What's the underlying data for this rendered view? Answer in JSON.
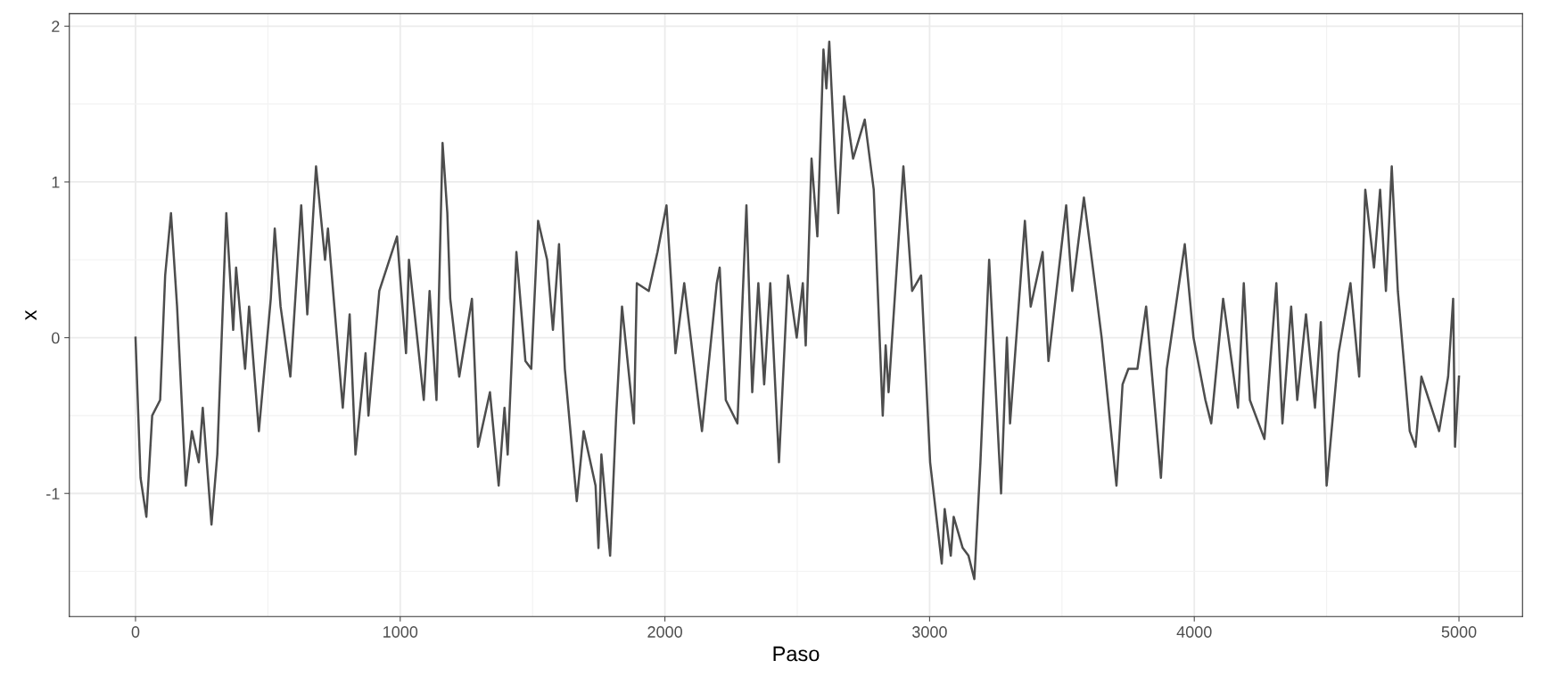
{
  "chart_data": {
    "type": "line",
    "xlabel": "Paso",
    "ylabel": "x",
    "xlim": [
      -250,
      5240
    ],
    "ylim": [
      -1.79,
      2.08
    ],
    "xticks": [
      0,
      1000,
      2000,
      3000,
      4000,
      5000
    ],
    "yticks": [
      -1,
      0,
      1,
      2
    ],
    "grid": true,
    "marker": "none",
    "line_style": "solid",
    "series": [
      {
        "color": "#4d4d4d",
        "x": [
          0,
          19,
          41,
          63,
          93,
          112,
          134,
          157,
          190,
          213,
          239,
          254,
          287,
          309,
          332,
          343,
          369,
          380,
          414,
          429,
          466,
          511,
          526,
          548,
          585,
          626,
          649,
          682,
          716,
          727,
          761,
          783,
          809,
          831,
          869,
          880,
          921,
          988,
          1022,
          1033,
          1089,
          1111,
          1137,
          1160,
          1178,
          1189,
          1223,
          1271,
          1294,
          1339,
          1372,
          1394,
          1406,
          1439,
          1473,
          1495,
          1521,
          1555,
          1577,
          1600,
          1622,
          1667,
          1693,
          1738,
          1749,
          1760,
          1793,
          1816,
          1838,
          1883,
          1894,
          1939,
          1972,
          2006,
          2040,
          2073,
          2129,
          2140,
          2196,
          2207,
          2230,
          2274,
          2308,
          2330,
          2353,
          2375,
          2398,
          2431,
          2465,
          2498,
          2521,
          2532,
          2554,
          2576,
          2599,
          2610,
          2621,
          2644,
          2655,
          2677,
          2711,
          2755,
          2789,
          2823,
          2834,
          2845,
          2901,
          2934,
          2968,
          3002,
          3046,
          3057,
          3080,
          3091,
          3125,
          3147,
          3169,
          3192,
          3225,
          3270,
          3292,
          3304,
          3360,
          3382,
          3427,
          3449,
          3516,
          3539,
          3583,
          3628,
          3650,
          3706,
          3729,
          3751,
          3785,
          3818,
          3874,
          3896,
          3964,
          3997,
          4042,
          4064,
          4109,
          4165,
          4187,
          4210,
          4265,
          4310,
          4333,
          4366,
          4389,
          4422,
          4456,
          4478,
          4500,
          4545,
          4590,
          4623,
          4646,
          4679,
          4702,
          4724,
          4746,
          4769,
          4814,
          4836,
          4858,
          4925,
          4959,
          4978,
          4985,
          5000
        ],
        "values": [
          0,
          -0.9,
          -1.15,
          -0.5,
          -0.4,
          0.4,
          0.8,
          0.2,
          -0.95,
          -0.6,
          -0.8,
          -0.45,
          -1.2,
          -0.75,
          0.3,
          0.8,
          0.05,
          0.45,
          -0.2,
          0.2,
          -0.6,
          0.25,
          0.7,
          0.2,
          -0.25,
          0.85,
          0.15,
          1.1,
          0.5,
          0.7,
          0.0,
          -0.45,
          0.15,
          -0.75,
          -0.1,
          -0.5,
          0.3,
          0.65,
          -0.1,
          0.5,
          -0.4,
          0.3,
          -0.4,
          1.25,
          0.8,
          0.25,
          -0.25,
          0.25,
          -0.7,
          -0.35,
          -0.95,
          -0.45,
          -0.75,
          0.55,
          -0.15,
          -0.2,
          0.75,
          0.5,
          0.05,
          0.6,
          -0.2,
          -1.05,
          -0.6,
          -0.95,
          -1.35,
          -0.75,
          -1.4,
          -0.5,
          0.2,
          -0.55,
          0.35,
          0.3,
          0.55,
          0.85,
          -0.1,
          0.35,
          -0.45,
          -0.6,
          0.35,
          0.45,
          -0.4,
          -0.55,
          0.85,
          -0.35,
          0.35,
          -0.3,
          0.35,
          -0.8,
          0.4,
          0.0,
          0.35,
          -0.05,
          1.15,
          0.65,
          1.85,
          1.6,
          1.9,
          1.1,
          0.8,
          1.55,
          1.15,
          1.4,
          0.95,
          -0.5,
          -0.05,
          -0.35,
          1.1,
          0.3,
          0.4,
          -0.8,
          -1.45,
          -1.1,
          -1.4,
          -1.15,
          -1.35,
          -1.4,
          -1.55,
          -0.8,
          0.5,
          -1.0,
          0.0,
          -0.55,
          0.75,
          0.2,
          0.55,
          -0.15,
          0.85,
          0.3,
          0.9,
          0.3,
          0.0,
          -0.95,
          -0.3,
          -0.2,
          -0.2,
          0.2,
          -0.9,
          -0.2,
          0.6,
          0.0,
          -0.4,
          -0.55,
          0.25,
          -0.45,
          0.35,
          -0.4,
          -0.65,
          0.35,
          -0.55,
          0.2,
          -0.4,
          0.15,
          -0.45,
          0.1,
          -0.95,
          -0.1,
          0.35,
          -0.25,
          0.95,
          0.45,
          0.95,
          0.3,
          1.1,
          0.3,
          -0.6,
          -0.7,
          -0.25,
          -0.6,
          -0.25,
          0.25,
          -0.7,
          -0.25
        ]
      }
    ]
  }
}
